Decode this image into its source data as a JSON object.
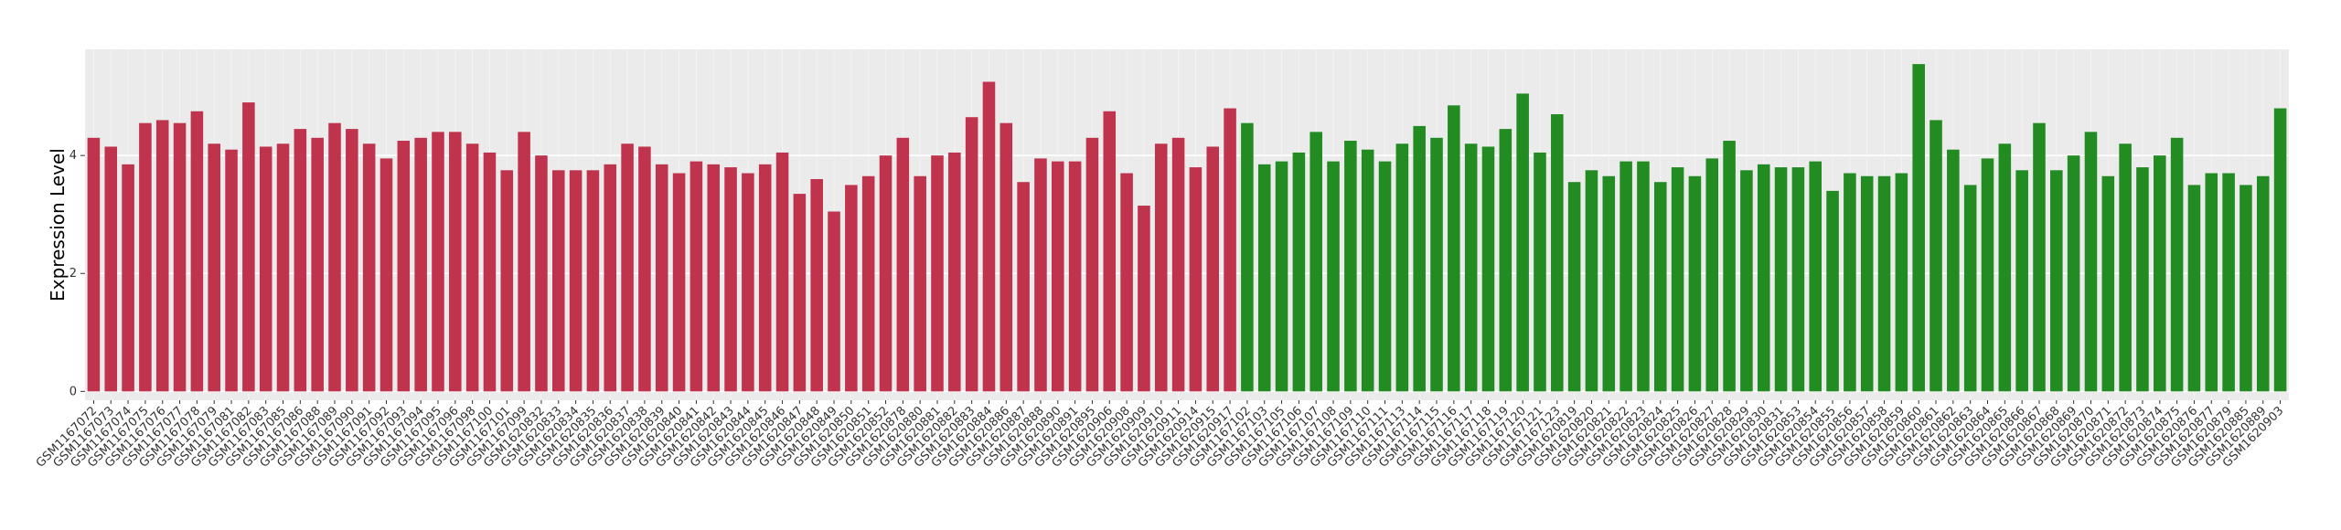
{
  "chart_data": {
    "type": "bar",
    "y_label": "Expression Level",
    "categories": [
      "GSM1167072",
      "GSM1167073",
      "GSM1167074",
      "GSM1167075",
      "GSM1167076",
      "GSM1167077",
      "GSM1167078",
      "GSM1167079",
      "GSM1167081",
      "GSM1167082",
      "GSM1167083",
      "GSM1167085",
      "GSM1167086",
      "GSM1167088",
      "GSM1167089",
      "GSM1167090",
      "GSM1167091",
      "GSM1167092",
      "GSM1167093",
      "GSM1167094",
      "GSM1167095",
      "GSM1167096",
      "GSM1167098",
      "GSM1167100",
      "GSM1167101",
      "GSM1167099",
      "GSM1620832",
      "GSM1620833",
      "GSM1620834",
      "GSM1620835",
      "GSM1620836",
      "GSM1620837",
      "GSM1620838",
      "GSM1620839",
      "GSM1620840",
      "GSM1620841",
      "GSM1620842",
      "GSM1620843",
      "GSM1620844",
      "GSM1620845",
      "GSM1620846",
      "GSM1620847",
      "GSM1620848",
      "GSM1620849",
      "GSM1620850",
      "GSM1620851",
      "GSM1620852",
      "GSM1620878",
      "GSM1620880",
      "GSM1620881",
      "GSM1620882",
      "GSM1620883",
      "GSM1620884",
      "GSM1620886",
      "GSM1620887",
      "GSM1620888",
      "GSM1620890",
      "GSM1620891",
      "GSM1620895",
      "GSM1620906",
      "GSM1620908",
      "GSM1620909",
      "GSM1620910",
      "GSM1620911",
      "GSM1620914",
      "GSM1620915",
      "GSM1620917",
      "GSM1167102",
      "GSM1167103",
      "GSM1167105",
      "GSM1167106",
      "GSM1167107",
      "GSM1167108",
      "GSM1167109",
      "GSM1167110",
      "GSM1167111",
      "GSM1167113",
      "GSM1167114",
      "GSM1167115",
      "GSM1167116",
      "GSM1167117",
      "GSM1167118",
      "GSM1167119",
      "GSM1167120",
      "GSM1167121",
      "GSM1167123",
      "GSM1620819",
      "GSM1620820",
      "GSM1620821",
      "GSM1620822",
      "GSM1620823",
      "GSM1620824",
      "GSM1620825",
      "GSM1620826",
      "GSM1620827",
      "GSM1620828",
      "GSM1620829",
      "GSM1620830",
      "GSM1620831",
      "GSM1620853",
      "GSM1620854",
      "GSM1620855",
      "GSM1620856",
      "GSM1620857",
      "GSM1620858",
      "GSM1620859",
      "GSM1620860",
      "GSM1620861",
      "GSM1620862",
      "GSM1620863",
      "GSM1620864",
      "GSM1620865",
      "GSM1620866",
      "GSM1620867",
      "GSM1620868",
      "GSM1620869",
      "GSM1620870",
      "GSM1620871",
      "GSM1620872",
      "GSM1620873",
      "GSM1620874",
      "GSM1620875",
      "GSM1620876",
      "GSM1620877",
      "GSM1620879",
      "GSM1620885",
      "GSM1620889",
      "GSM1620903"
    ],
    "series": [
      {
        "color": "#c0334d",
        "values": [
          4.3,
          4.15,
          3.85,
          4.55,
          4.6,
          4.55,
          4.75,
          4.2,
          4.1,
          4.9,
          4.15,
          4.2,
          4.45,
          4.3,
          4.55,
          4.45,
          4.2,
          3.95,
          4.25,
          4.3,
          4.4,
          4.4,
          4.2,
          4.05,
          3.75,
          4.4,
          4.0,
          3.75,
          3.75,
          3.75,
          3.85,
          4.2,
          4.15,
          3.85,
          3.7,
          3.9,
          3.85,
          3.8,
          3.7,
          3.85,
          4.05,
          3.35,
          3.6,
          3.05,
          3.5,
          3.65,
          4.0,
          4.3,
          3.65,
          4.0,
          4.05,
          4.65,
          5.25,
          4.55,
          3.55,
          3.95,
          3.9,
          3.9,
          4.3,
          4.75,
          3.7,
          3.15,
          4.2,
          4.3,
          3.8,
          4.15,
          4.8,
          null,
          null,
          null,
          null,
          null,
          null,
          null,
          null,
          null,
          null,
          null,
          null,
          null,
          null,
          null,
          null,
          null,
          null,
          null,
          null,
          null,
          null,
          null,
          null,
          null,
          null,
          null,
          null,
          null,
          null,
          null,
          null,
          null,
          null,
          null,
          null,
          null,
          null,
          null,
          null,
          null,
          null,
          null,
          null,
          null,
          null,
          null,
          null,
          null,
          null,
          null,
          null,
          null,
          null,
          null,
          null,
          null,
          null,
          null,
          null,
          null
        ]
      },
      {
        "color": "#228b22",
        "values": [
          null,
          null,
          null,
          null,
          null,
          null,
          null,
          null,
          null,
          null,
          null,
          null,
          null,
          null,
          null,
          null,
          null,
          null,
          null,
          null,
          null,
          null,
          null,
          null,
          null,
          null,
          null,
          null,
          null,
          null,
          null,
          null,
          null,
          null,
          null,
          null,
          null,
          null,
          null,
          null,
          null,
          null,
          null,
          null,
          null,
          null,
          null,
          null,
          null,
          null,
          null,
          null,
          null,
          null,
          null,
          null,
          null,
          null,
          null,
          null,
          null,
          null,
          null,
          null,
          null,
          null,
          null,
          4.55,
          3.85,
          3.9,
          4.05,
          4.4,
          3.9,
          4.25,
          4.1,
          3.9,
          4.2,
          4.5,
          4.3,
          4.85,
          4.2,
          4.15,
          4.45,
          5.05,
          4.05,
          4.7,
          3.55,
          3.75,
          3.65,
          3.9,
          3.9,
          3.55,
          3.8,
          3.65,
          3.95,
          4.25,
          3.75,
          3.85,
          3.8,
          3.8,
          3.9,
          3.4,
          3.7,
          3.65,
          3.65,
          3.7,
          5.55,
          4.6,
          4.1,
          3.5,
          3.95,
          4.2,
          3.75,
          4.55,
          3.75,
          4.0,
          4.4,
          3.65,
          4.2,
          3.8,
          4.0,
          4.3,
          3.5,
          3.7,
          3.7,
          3.5,
          3.65,
          4.8
        ]
      }
    ],
    "ylim": [
      -0.15,
      5.8
    ],
    "yticks": [
      0,
      2,
      4
    ],
    "grid": true
  }
}
